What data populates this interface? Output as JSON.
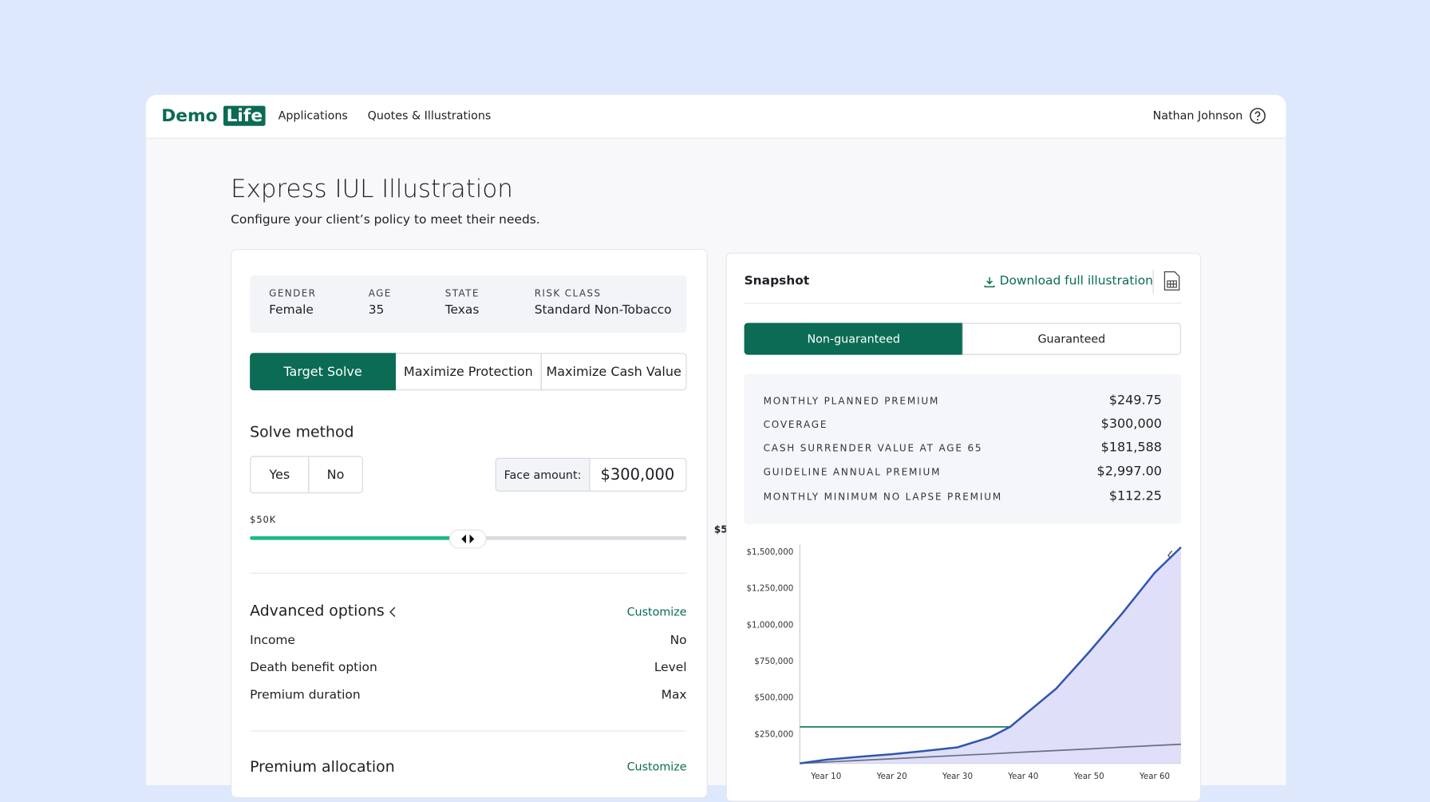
{
  "nav": {
    "logo_word": "Demo",
    "logo_badge": "Life",
    "links": [
      "Applications",
      "Quotes & Illustrations"
    ],
    "user": "Nathan Johnson"
  },
  "header": {
    "title": "Express IUL Illustration",
    "subtitle": "Configure your client’s policy to meet their needs."
  },
  "client": [
    {
      "label": "GENDER",
      "value": "Female"
    },
    {
      "label": "AGE",
      "value": 35
    },
    {
      "label": "STATE",
      "value": "Texas"
    },
    {
      "label": "RISK CLASS",
      "value": "Standard Non-Tobacco"
    }
  ],
  "solve_tabs": [
    "Target Solve",
    "Maximize Protection",
    "Maximize Cash Value"
  ],
  "solve_method": {
    "title": "Solve method",
    "options": [
      "Yes",
      "No"
    ],
    "face_amount_label": "Face amount:",
    "face_amount": "$300,000",
    "slider_min_label": "$50K",
    "slider_max_label": "$5"
  },
  "advanced": {
    "title": "Advanced options",
    "action": "Customize",
    "rows": [
      [
        "Income",
        "No"
      ],
      [
        "Death benefit option",
        "Level"
      ],
      [
        "Premium duration",
        "Max"
      ]
    ]
  },
  "premium_allocation": {
    "title": "Premium allocation",
    "action": "Customize"
  },
  "snapshot": {
    "title": "Snapshot",
    "download": "Download full illustration",
    "toggle": [
      "Non-guaranteed",
      "Guaranteed"
    ],
    "metrics": [
      [
        "MONTHLY PLANNED PREMIUM",
        "$249.75"
      ],
      [
        "COVERAGE",
        "$300,000"
      ],
      [
        "CASH SURRENDER VALUE AT AGE 65",
        "$181,588"
      ],
      [
        "GUIDELINE ANNUAL PREMIUM",
        "$2,997.00"
      ],
      [
        "MONTHLY MINIMUM NO LAPSE PREMIUM",
        "$112.25"
      ]
    ]
  },
  "chart_data": {
    "type": "line",
    "x": [
      6,
      10,
      15,
      20,
      25,
      30,
      35,
      38,
      40,
      45,
      50,
      55,
      60,
      64
    ],
    "series": [
      {
        "color": "#2f56b0",
        "fill": "#dcdcfa",
        "values": [
          50000,
          75000,
          95000,
          112500,
          135000,
          160000,
          230000,
          300000,
          375000,
          562000,
          812000,
          1075000,
          1356000,
          1531000
        ]
      },
      {
        "color": "#1f7a5c",
        "values": [
          300000,
          300000,
          300000,
          300000,
          300000,
          300000,
          300000,
          300000,
          375000,
          562000,
          812000,
          1075000,
          1356000,
          1531000
        ]
      },
      {
        "color": "#6b6f80",
        "values": [
          50000,
          59000,
          70000,
          81000,
          93000,
          104000,
          115000,
          122000,
          127000,
          138000,
          149000,
          161000,
          172000,
          181000
        ]
      }
    ],
    "xlim": [
      6,
      64
    ],
    "ylim": [
      50000,
      1550000
    ],
    "xticks": [
      {
        "value": 10,
        "label": "Year 10"
      },
      {
        "value": 20,
        "label": "Year 20"
      },
      {
        "value": 30,
        "label": "Year 30"
      },
      {
        "value": 40,
        "label": "Year 40"
      },
      {
        "value": 50,
        "label": "Year 50"
      },
      {
        "value": 60,
        "label": "Year 60"
      }
    ],
    "yticks": [
      {
        "value": 250000,
        "label": "$250,000"
      },
      {
        "value": 500000,
        "label": "$500,000"
      },
      {
        "value": 750000,
        "label": "$750,000"
      },
      {
        "value": 1000000,
        "label": "$1,000,000"
      },
      {
        "value": 1250000,
        "label": "$1,250,000"
      },
      {
        "value": 1500000,
        "label": "$1,500,000"
      }
    ]
  }
}
